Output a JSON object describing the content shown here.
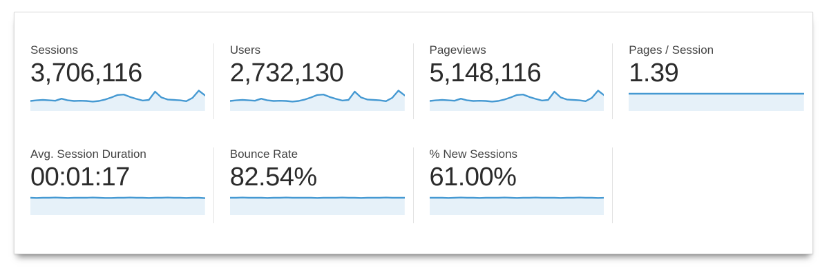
{
  "card": {
    "rows": [
      {
        "metrics": [
          {
            "id": "sessions",
            "label": "Sessions",
            "value": "3,706,116",
            "spark_type": "area",
            "spark": [
              45,
              48,
              50,
              48,
              46,
              56,
              48,
              45,
              46,
              45,
              42,
              45,
              52,
              62,
              74,
              76,
              64,
              55,
              47,
              50,
              90,
              62,
              52,
              50,
              48,
              44,
              60,
              95,
              72
            ]
          },
          {
            "id": "users",
            "label": "Users",
            "value": "2,732,130",
            "spark_type": "area",
            "spark": [
              45,
              48,
              50,
              48,
              46,
              56,
              48,
              45,
              46,
              45,
              42,
              45,
              52,
              62,
              74,
              76,
              64,
              55,
              47,
              50,
              90,
              62,
              52,
              50,
              48,
              44,
              60,
              95,
              72
            ]
          },
          {
            "id": "pageviews",
            "label": "Pageviews",
            "value": "5,148,116",
            "spark_type": "area",
            "spark": [
              45,
              48,
              50,
              48,
              46,
              56,
              48,
              45,
              46,
              45,
              42,
              45,
              52,
              62,
              74,
              76,
              64,
              55,
              47,
              50,
              90,
              62,
              52,
              50,
              48,
              44,
              60,
              95,
              72
            ]
          },
          {
            "id": "pages-per-session",
            "label": "Pages / Session",
            "value": "1.39",
            "spark_type": "area",
            "spark": [
              80,
              80,
              80,
              80,
              80,
              80,
              80,
              80,
              80,
              80,
              80,
              80,
              80,
              80,
              80,
              80,
              80,
              80,
              80,
              80,
              80,
              80,
              80,
              80,
              80,
              80,
              80,
              80,
              80
            ]
          }
        ]
      },
      {
        "metrics": [
          {
            "id": "avg-session-duration",
            "label": "Avg. Session Duration",
            "value": "00:01:17",
            "spark_type": "area",
            "spark": [
              80,
              79,
              80,
              80,
              81,
              80,
              79,
              80,
              80,
              80,
              81,
              80,
              79,
              79,
              80,
              80,
              81,
              80,
              80,
              79,
              80,
              80,
              81,
              80,
              80,
              79,
              80,
              80,
              78
            ]
          },
          {
            "id": "bounce-rate",
            "label": "Bounce Rate",
            "value": "82.54%",
            "spark_type": "area",
            "spark": [
              80,
              80,
              81,
              80,
              80,
              80,
              79,
              80,
              80,
              81,
              80,
              80,
              80,
              80,
              79,
              80,
              80,
              80,
              81,
              80,
              80,
              79,
              80,
              80,
              80,
              81,
              80,
              80,
              80
            ]
          },
          {
            "id": "new-sessions",
            "label": "% New Sessions",
            "value": "61.00%",
            "spark_type": "area",
            "spark": [
              80,
              80,
              80,
              79,
              80,
              81,
              80,
              80,
              79,
              80,
              80,
              80,
              81,
              80,
              79,
              80,
              80,
              81,
              80,
              80,
              80,
              79,
              80,
              80,
              81,
              80,
              80,
              79,
              80
            ]
          }
        ]
      }
    ]
  },
  "colors": {
    "spark_line": "#4599d2",
    "spark_fill": "#e6f1f9",
    "label_text": "#444444",
    "value_text": "#2b2b2b",
    "divider": "#e2e2e2",
    "card_border": "#d9d9d9"
  }
}
